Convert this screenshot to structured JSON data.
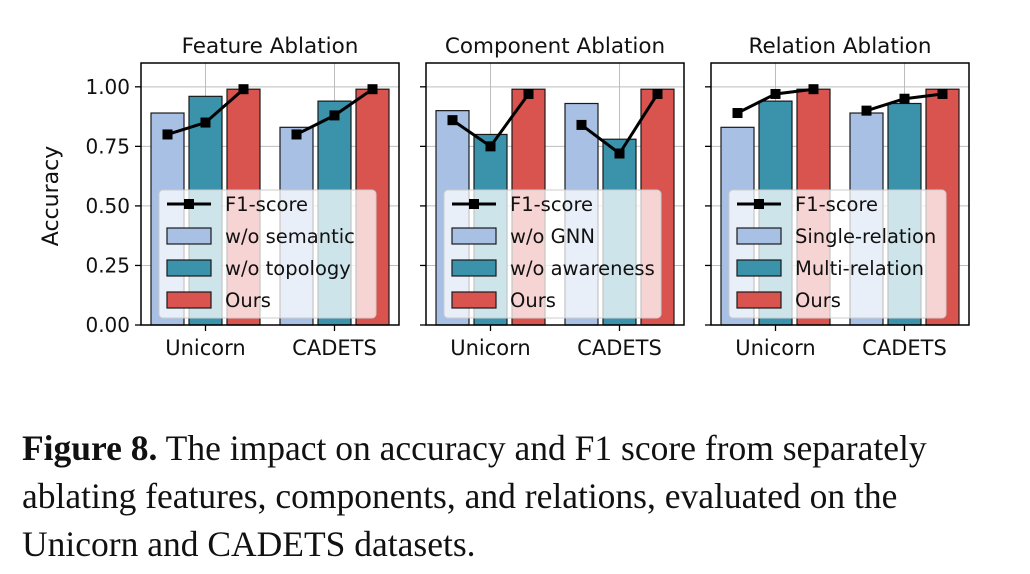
{
  "figure": {
    "ylabel": "Accuracy",
    "yticks": [
      "0.00",
      "0.25",
      "0.50",
      "0.75",
      "1.00"
    ],
    "caption_label": "Figure 8.",
    "caption_text": " The impact on accuracy and F1 score from separately ablating features, components, and relations, evaluated on the Unicorn and CADETS datasets."
  },
  "colors": {
    "light_blue": "#a7c0e3",
    "teal": "#3a93ab",
    "red": "#d9534f",
    "line": "#000000"
  },
  "chart_data": [
    {
      "type": "bar",
      "title": "Feature Ablation",
      "categories": [
        "Unicorn",
        "CADETS"
      ],
      "ylim": [
        0,
        1.1
      ],
      "grid": true,
      "legend": "lower-right",
      "series": [
        {
          "name": "w/o semantic",
          "color": "#a7c0e3",
          "values": [
            0.89,
            0.83
          ]
        },
        {
          "name": "w/o topology",
          "color": "#3a93ab",
          "values": [
            0.96,
            0.94
          ]
        },
        {
          "name": "Ours",
          "color": "#d9534f",
          "values": [
            0.99,
            0.99
          ]
        }
      ],
      "line": {
        "name": "F1-score",
        "values": [
          [
            0.8,
            0.85,
            0.99
          ],
          [
            0.8,
            0.88,
            0.99
          ]
        ]
      }
    },
    {
      "type": "bar",
      "title": "Component Ablation",
      "categories": [
        "Unicorn",
        "CADETS"
      ],
      "ylim": [
        0,
        1.1
      ],
      "grid": true,
      "legend": "lower-right",
      "series": [
        {
          "name": "w/o GNN",
          "color": "#a7c0e3",
          "values": [
            0.9,
            0.93
          ]
        },
        {
          "name": "w/o awareness",
          "color": "#3a93ab",
          "values": [
            0.8,
            0.78
          ]
        },
        {
          "name": "Ours",
          "color": "#d9534f",
          "values": [
            0.99,
            0.99
          ]
        }
      ],
      "line": {
        "name": "F1-score",
        "values": [
          [
            0.86,
            0.75,
            0.97
          ],
          [
            0.84,
            0.72,
            0.97
          ]
        ]
      }
    },
    {
      "type": "bar",
      "title": "Relation Ablation",
      "categories": [
        "Unicorn",
        "CADETS"
      ],
      "ylim": [
        0,
        1.1
      ],
      "grid": true,
      "legend": "lower-right",
      "series": [
        {
          "name": "Single-relation",
          "color": "#a7c0e3",
          "values": [
            0.83,
            0.89
          ]
        },
        {
          "name": "Multi-relation",
          "color": "#3a93ab",
          "values": [
            0.94,
            0.93
          ]
        },
        {
          "name": "Ours",
          "color": "#d9534f",
          "values": [
            0.99,
            0.99
          ]
        }
      ],
      "line": {
        "name": "F1-score",
        "values": [
          [
            0.89,
            0.97,
            0.99
          ],
          [
            0.9,
            0.95,
            0.97
          ]
        ]
      }
    }
  ]
}
